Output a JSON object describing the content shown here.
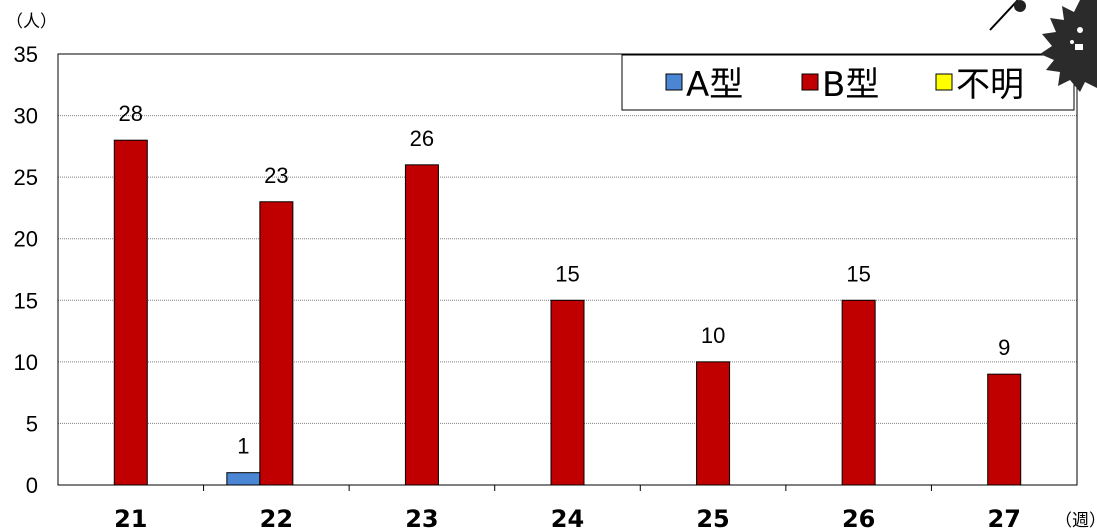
{
  "chart_data": {
    "type": "bar",
    "categories": [
      "21",
      "22",
      "23",
      "24",
      "25",
      "26",
      "27"
    ],
    "series": [
      {
        "name": "A型",
        "values": [
          0,
          1,
          0,
          0,
          0,
          0,
          0
        ],
        "color": "#4a86d4"
      },
      {
        "name": "B型",
        "values": [
          28,
          23,
          26,
          15,
          10,
          15,
          9
        ],
        "color": "#c00000"
      },
      {
        "name": "不明",
        "values": [
          0,
          0,
          0,
          0,
          0,
          0,
          0
        ],
        "color": "#ffff00"
      }
    ],
    "data_labels": [
      {
        "series": 0,
        "index": 1,
        "text": "1"
      },
      {
        "series": 1,
        "index": 0,
        "text": "28"
      },
      {
        "series": 1,
        "index": 1,
        "text": "23"
      },
      {
        "series": 1,
        "index": 2,
        "text": "26"
      },
      {
        "series": 1,
        "index": 3,
        "text": "15"
      },
      {
        "series": 1,
        "index": 4,
        "text": "10"
      },
      {
        "series": 1,
        "index": 5,
        "text": "15"
      },
      {
        "series": 1,
        "index": 6,
        "text": "9"
      }
    ],
    "ylabel": "（人）",
    "xlabel": "（週）",
    "ylim": [
      0,
      35
    ],
    "yticks": [
      "0",
      "5",
      "10",
      "15",
      "20",
      "25",
      "30",
      "35"
    ],
    "grid": true,
    "legend": "top-right"
  }
}
